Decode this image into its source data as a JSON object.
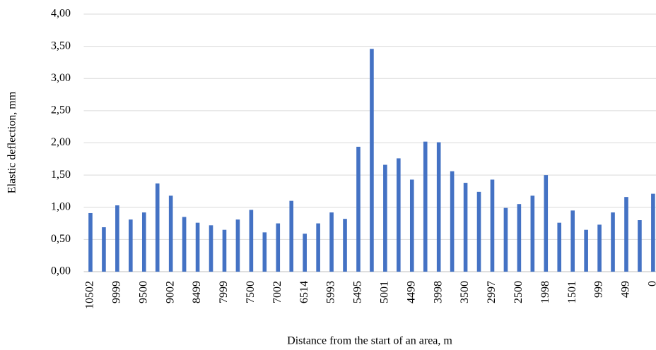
{
  "chart_data": {
    "type": "bar",
    "x_label": "Distance from the start of an area, m",
    "y_label": "Elastic deflection, mm",
    "categories": [
      "10502",
      null,
      "9999",
      null,
      "9500",
      null,
      "9002",
      null,
      "8499",
      null,
      "7999",
      null,
      "7500",
      null,
      "7002",
      null,
      "6514",
      null,
      "5993",
      null,
      "5495",
      null,
      "5001",
      null,
      "4499",
      null,
      "3998",
      null,
      "3500",
      null,
      "2997",
      null,
      "2500",
      null,
      "1998",
      null,
      "1501",
      null,
      "999",
      null,
      "499",
      null,
      "0"
    ],
    "values": [
      0.91,
      0.69,
      1.03,
      0.81,
      0.92,
      1.37,
      1.18,
      0.85,
      0.76,
      0.72,
      0.65,
      0.81,
      0.96,
      0.61,
      0.75,
      1.1,
      0.59,
      0.75,
      0.92,
      0.82,
      1.94,
      3.46,
      1.66,
      1.76,
      1.43,
      2.02,
      2.01,
      1.56,
      1.38,
      1.24,
      1.43,
      0.99,
      1.05,
      1.18,
      1.5,
      0.76,
      0.95,
      0.65,
      0.73,
      0.92,
      1.16,
      0.8,
      1.21
    ],
    "color": "#4472c4",
    "ylim": [
      0,
      4
    ],
    "yticks": [
      {
        "value": 0,
        "label": "0,00"
      },
      {
        "value": 0.5,
        "label": "0,50"
      },
      {
        "value": 1,
        "label": "1,00"
      },
      {
        "value": 1.5,
        "label": "1,50"
      },
      {
        "value": 2,
        "label": "2,00"
      },
      {
        "value": 2.5,
        "label": "2,50"
      },
      {
        "value": 3,
        "label": "3,00"
      },
      {
        "value": 3.5,
        "label": "3,50"
      },
      {
        "value": 4,
        "label": "4,00"
      }
    ],
    "grid": true
  }
}
